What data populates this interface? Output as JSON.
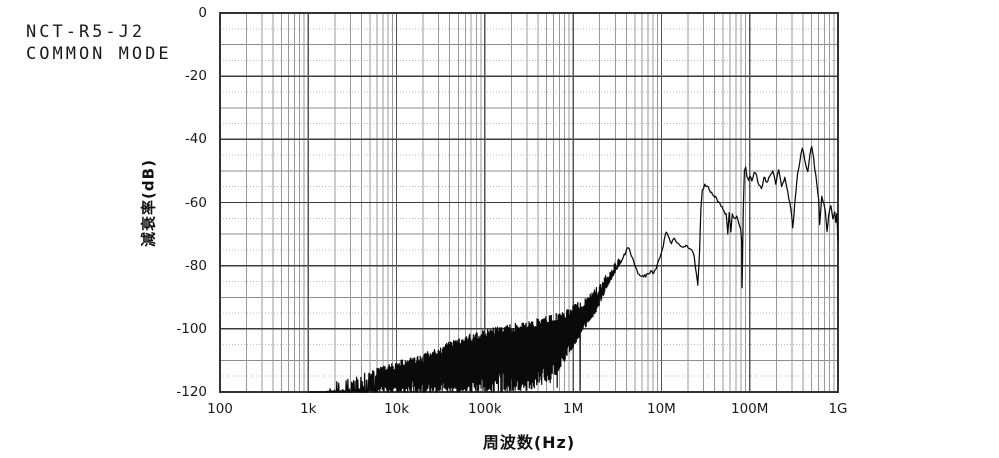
{
  "header": {
    "line1": "NCT-R5-J2",
    "line2": "COMMON MODE"
  },
  "chart_data": {
    "type": "line",
    "title": "NCT-R5-J2 COMMON MODE",
    "xlabel": "周波数(Hz)",
    "ylabel": "減衰率(dB)",
    "x_scale": "log",
    "x_range_hz": [
      100,
      1000000000
    ],
    "ylim": [
      -120,
      0
    ],
    "grid": "log-x decades with 2-9 minors; y major every 20 dB, solid minor every 10 dB, dotted every 5 dB",
    "legend": "none",
    "x_ticks": [
      {
        "f": 100,
        "label": "100"
      },
      {
        "f": 1000,
        "label": "1k"
      },
      {
        "f": 10000,
        "label": "10k"
      },
      {
        "f": 100000,
        "label": "100k"
      },
      {
        "f": 1000000,
        "label": "1M"
      },
      {
        "f": 10000000,
        "label": "10M"
      },
      {
        "f": 100000000,
        "label": "100M"
      },
      {
        "f": 1000000000,
        "label": "1G"
      }
    ],
    "y_ticks": [
      {
        "db": 0,
        "label": "0"
      },
      {
        "db": -20,
        "label": "-20"
      },
      {
        "db": -40,
        "label": "-40"
      },
      {
        "db": -60,
        "label": "-60"
      },
      {
        "db": -80,
        "label": "-80"
      },
      {
        "db": -100,
        "label": "-100"
      },
      {
        "db": -120,
        "label": "-120"
      }
    ],
    "series": [
      {
        "name": "common-mode attenuation",
        "color": "#0a0a0a",
        "floor_db": -120,
        "flat_floor_range_hz": [
          1000,
          1600
        ],
        "noise_band": {
          "range_hz": [
            1600,
            3500000
          ],
          "upper_env": [
            [
              1600,
              -119
            ],
            [
              3200,
              -116
            ],
            [
              6300,
              -113.5
            ],
            [
              10000,
              -111.5
            ],
            [
              16000,
              -110
            ],
            [
              32000,
              -106.5
            ],
            [
              63000,
              -103
            ],
            [
              100000,
              -101.5
            ],
            [
              200000,
              -99.5
            ],
            [
              400000,
              -98
            ],
            [
              800000,
              -95.5
            ],
            [
              1260000,
              -92
            ],
            [
              2000000,
              -87
            ],
            [
              2800000,
              -81
            ],
            [
              3500000,
              -77.8
            ]
          ],
          "lower_env": [
            [
              1600,
              -120
            ],
            [
              250000,
              -120
            ],
            [
              400000,
              -118.5
            ],
            [
              630000,
              -115
            ],
            [
              900000,
              -108
            ],
            [
              1260000,
              -101
            ],
            [
              1800000,
              -95
            ],
            [
              2500000,
              -86
            ],
            [
              3500000,
              -78.8
            ]
          ],
          "deep_spikes": [
            [
              550000,
              -117
            ],
            [
              660000,
              -118.5
            ],
            [
              1200000,
              -119.5
            ]
          ]
        },
        "backbone": [
          [
            3500000,
            -78.3
          ],
          [
            4200000,
            -74.3
          ],
          [
            4700000,
            -77.5
          ],
          [
            5100000,
            -80.5
          ],
          [
            5600000,
            -82.8
          ],
          [
            6300000,
            -83.6
          ],
          [
            7000000,
            -82.5
          ],
          [
            7600000,
            -81.6
          ],
          [
            8200000,
            -82.3
          ],
          [
            9000000,
            -79.5
          ],
          [
            9600000,
            -77.5
          ],
          [
            10500000,
            -73.8
          ],
          [
            11300000,
            -69.4
          ],
          [
            12200000,
            -71.2
          ],
          [
            13000000,
            -73
          ],
          [
            14000000,
            -71.3
          ],
          [
            15000000,
            -72.8
          ],
          [
            16500000,
            -73.8
          ],
          [
            18500000,
            -74
          ],
          [
            20000000,
            -74.3
          ],
          [
            22000000,
            -75
          ],
          [
            23500000,
            -77
          ],
          [
            25000000,
            -83
          ],
          [
            25800000,
            -86.2
          ],
          [
            27000000,
            -76
          ],
          [
            28000000,
            -62
          ],
          [
            29000000,
            -56
          ],
          [
            31000000,
            -54.2
          ],
          [
            33000000,
            -54.8
          ],
          [
            36000000,
            -56.8
          ],
          [
            39000000,
            -57.8
          ],
          [
            42000000,
            -58.6
          ],
          [
            46000000,
            -60.3
          ],
          [
            50000000,
            -62.3
          ],
          [
            54000000,
            -63.5
          ],
          [
            56500000,
            -70
          ],
          [
            58500000,
            -63.2
          ],
          [
            61000000,
            -69.3
          ],
          [
            63500000,
            -63.6
          ],
          [
            67000000,
            -65
          ],
          [
            71000000,
            -64.3
          ],
          [
            75000000,
            -66.5
          ],
          [
            79000000,
            -68.5
          ],
          [
            81000000,
            -72
          ],
          [
            82000000,
            -87
          ],
          [
            84500000,
            -62
          ],
          [
            87000000,
            -50
          ],
          [
            90000000,
            -48.8
          ],
          [
            93000000,
            -51.8
          ],
          [
            97000000,
            -53
          ],
          [
            100000000,
            -51.8
          ],
          [
            106000000,
            -53.2
          ],
          [
            112000000,
            -50.5
          ],
          [
            120000000,
            -51.5
          ],
          [
            127000000,
            -54.5
          ],
          [
            136000000,
            -55.6
          ],
          [
            145000000,
            -52
          ],
          [
            156000000,
            -53.6
          ],
          [
            168000000,
            -51.8
          ],
          [
            182000000,
            -50
          ],
          [
            197000000,
            -54.2
          ],
          [
            213000000,
            -49.6
          ],
          [
            230000000,
            -55
          ],
          [
            250000000,
            -52
          ],
          [
            270000000,
            -56.6
          ],
          [
            292000000,
            -62
          ],
          [
            307000000,
            -68
          ],
          [
            324000000,
            -60
          ],
          [
            350000000,
            -50.5
          ],
          [
            370000000,
            -47
          ],
          [
            395000000,
            -42.8
          ],
          [
            420000000,
            -46.5
          ],
          [
            435000000,
            -48.5
          ],
          [
            455000000,
            -50.2
          ],
          [
            480000000,
            -45
          ],
          [
            505000000,
            -42.3
          ],
          [
            530000000,
            -46
          ],
          [
            545000000,
            -49.5
          ],
          [
            575000000,
            -54
          ],
          [
            605000000,
            -59
          ],
          [
            620000000,
            -67
          ],
          [
            655000000,
            -58
          ],
          [
            690000000,
            -60.2
          ],
          [
            720000000,
            -63
          ],
          [
            750000000,
            -69.2
          ],
          [
            785000000,
            -64
          ],
          [
            830000000,
            -61
          ],
          [
            875000000,
            -65.2
          ],
          [
            920000000,
            -63
          ],
          [
            945000000,
            -66.3
          ],
          [
            970000000,
            -63.5
          ],
          [
            1000000000,
            -72
          ]
        ]
      }
    ]
  }
}
